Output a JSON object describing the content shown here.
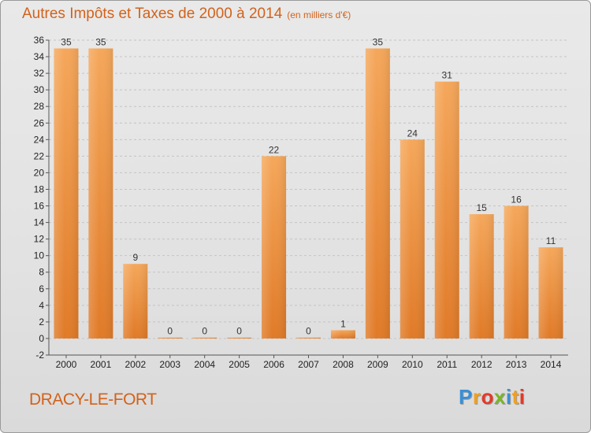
{
  "chart_data": {
    "type": "bar",
    "title": "Autres Impôts et Taxes de 2000 à 2014",
    "subtitle": "(en milliers d'€)",
    "categories": [
      "2000",
      "2001",
      "2002",
      "2003",
      "2004",
      "2005",
      "2006",
      "2007",
      "2008",
      "2009",
      "2010",
      "2011",
      "2012",
      "2013",
      "2014"
    ],
    "values": [
      35,
      35,
      9,
      0,
      0,
      0,
      22,
      0,
      1,
      35,
      24,
      31,
      15,
      16,
      11
    ],
    "ylim": [
      -2,
      36
    ],
    "yticks": [
      -2,
      0,
      2,
      4,
      6,
      8,
      10,
      12,
      14,
      16,
      18,
      20,
      22,
      24,
      26,
      28,
      30,
      32,
      34,
      36
    ],
    "grid": true,
    "bar_color": "#e07a27",
    "bar_color_light": "#f5a75a"
  },
  "footer": {
    "commune": "DRACY-LE-FORT",
    "logo": "Proxiti",
    "logo_colors": [
      "#3a8fd6",
      "#f0a020",
      "#e23a2a",
      "#7ab527",
      "#3a8fd6",
      "#f0a020",
      "#e23a2a"
    ]
  }
}
